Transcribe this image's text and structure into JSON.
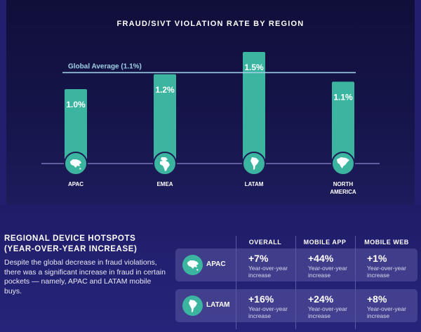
{
  "chart_data": {
    "type": "bar",
    "title": "FRAUD/SIVT VIOLATION RATE BY REGION",
    "categories": [
      "APAC",
      "EMEA",
      "LATAM",
      "NORTH AMERICA"
    ],
    "category_lines": [
      [
        "APAC"
      ],
      [
        "EMEA"
      ],
      [
        "LATAM"
      ],
      [
        "NORTH",
        "AMERICA"
      ]
    ],
    "values": [
      1.0,
      1.2,
      1.5,
      1.1
    ],
    "value_labels": [
      "1.0%",
      "1.2%",
      "1.5%",
      "1.1%"
    ],
    "icons": [
      "asia-map-icon",
      "europe-africa-map-icon",
      "south-america-map-icon",
      "north-america-map-icon"
    ],
    "reference_line": {
      "label": "Global Average (1.1%)",
      "value": 1.1
    },
    "ylim": [
      0,
      1.5
    ],
    "grid": false,
    "colors": {
      "bar": "#3bb5a0",
      "reference_line": "#9fd0e6",
      "baseline": "#8a89c9"
    }
  },
  "hotspots": {
    "title_line1": "REGIONAL DEVICE HOTSPOTS",
    "title_line2": "(YEAR-OVER-YEAR INCREASE)",
    "description": "Despite the global decrease in fraud violations, there was a significant increase in fraud in certain pockets — namely, APAC and LATAM mobile buys.",
    "columns": [
      "OVERALL",
      "MOBILE APP",
      "MOBILE WEB"
    ],
    "sub_label_line1": "Year-over-year",
    "sub_label_line2": "increase",
    "rows": [
      {
        "region": "APAC",
        "icon": "asia-map-icon",
        "overall": "+7%",
        "mobile_app": "+44%",
        "mobile_web": "+1%"
      },
      {
        "region": "LATAM",
        "icon": "south-america-map-icon",
        "overall": "+16%",
        "mobile_app": "+24%",
        "mobile_web": "+8%"
      }
    ]
  }
}
